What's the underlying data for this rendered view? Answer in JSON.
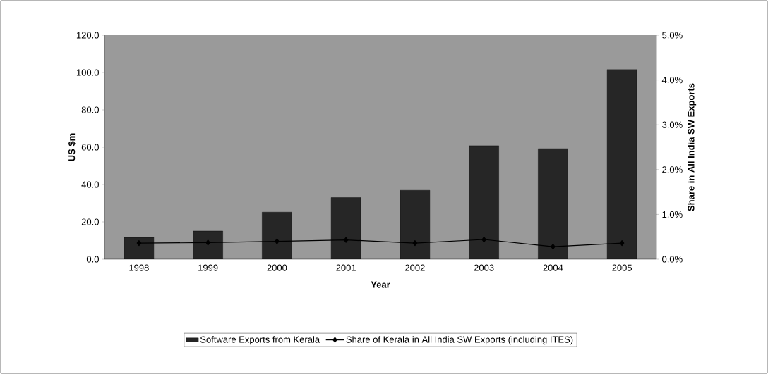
{
  "chart_data": {
    "type": "bar",
    "xlabel": "Year",
    "ylabel": "US $m",
    "y2label": "Share in All India SW Exports",
    "categories": [
      "1998",
      "1999",
      "2000",
      "2001",
      "2002",
      "2003",
      "2004",
      "2005"
    ],
    "series": [
      {
        "name": "Software Exports from Kerala",
        "color": "#262626",
        "values": [
          11.7,
          15.1,
          25.2,
          33.0,
          36.9,
          60.8,
          59.2,
          101.6
        ]
      },
      {
        "name": "Share of Kerala in All India SW Exports (including ITES)",
        "type": "line",
        "axis": "y2",
        "color": "#000000",
        "marker": "diamond",
        "values": [
          0.36,
          0.37,
          0.4,
          0.43,
          0.36,
          0.44,
          0.28,
          0.36
        ]
      }
    ],
    "ylim": [
      0,
      120
    ],
    "yticks": [
      {
        "value": 0,
        "label": "0.0"
      },
      {
        "value": 20,
        "label": "20.0"
      },
      {
        "value": 40,
        "label": "40.0"
      },
      {
        "value": 60,
        "label": "60.0"
      },
      {
        "value": 80,
        "label": "80.0"
      },
      {
        "value": 100,
        "label": "100.0"
      },
      {
        "value": 120,
        "label": "120.0"
      }
    ],
    "y2lim": [
      0,
      5
    ],
    "y2ticks": [
      {
        "value": 0,
        "label": "0.0%"
      },
      {
        "value": 1,
        "label": "1.0%"
      },
      {
        "value": 2,
        "label": "2.0%"
      },
      {
        "value": 3,
        "label": "3.0%"
      },
      {
        "value": 4,
        "label": "4.0%"
      },
      {
        "value": 5,
        "label": "5.0%"
      }
    ],
    "legend": "bottom",
    "grid": false
  }
}
